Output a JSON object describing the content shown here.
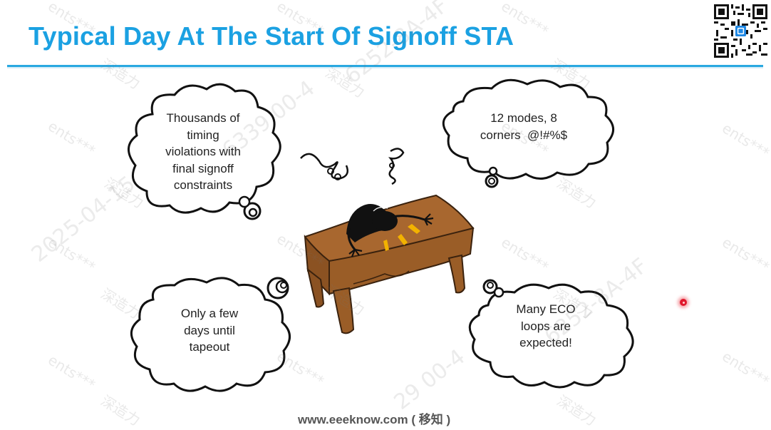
{
  "slide": {
    "title": "Typical Day At The Start Of Signoff STA",
    "footer": "www.eeeknow.com ( 移知 )"
  },
  "bubbles": {
    "top_left": [
      "Thousands of",
      "timing",
      "violations with",
      "final signoff",
      "constraints"
    ],
    "top_right": [
      "12 modes, 8",
      "corners  @!#%$"
    ],
    "bottom_left": [
      "Only a few",
      "days until",
      "tapeout"
    ],
    "bottom_right": [
      "Many ECO",
      "loops are",
      "expected!"
    ]
  },
  "watermarks": {
    "user": "ents***",
    "brand": "深造力",
    "date_text": "2025-04-15",
    "id_fragment_1": "6339 00-4",
    "id_fragment_2": "6252-8A-4F",
    "id_fragment_3": "29 00-4"
  },
  "colors": {
    "title": "#1ba1e2",
    "rule": "#29a8e0",
    "desk": "#a8672f",
    "laser_pointer": "#e0182d"
  }
}
